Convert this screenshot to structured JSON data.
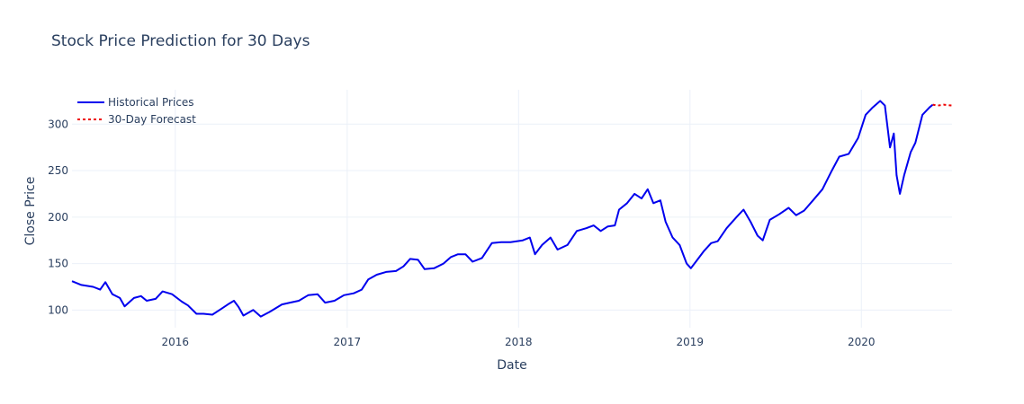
{
  "chart_data": {
    "type": "line",
    "title": "Stock Price Prediction for 30 Days",
    "xlabel": "Date",
    "ylabel": "Close Price",
    "x_range": [
      "2015-05-26",
      "2020-07-12"
    ],
    "ylim": [
      81,
      337
    ],
    "x_ticks": [
      {
        "date": "2016-01-01",
        "label": "2016"
      },
      {
        "date": "2017-01-01",
        "label": "2017"
      },
      {
        "date": "2018-01-01",
        "label": "2018"
      },
      {
        "date": "2019-01-01",
        "label": "2019"
      },
      {
        "date": "2020-01-01",
        "label": "2020"
      }
    ],
    "y_ticks": [
      100,
      150,
      200,
      250,
      300
    ],
    "grid": true,
    "legend_position": "top-left",
    "series": [
      {
        "name": "Historical Prices",
        "color": "#0000ee",
        "dash": "solid",
        "points": [
          [
            "2015-05-26",
            131
          ],
          [
            "2015-06-15",
            127
          ],
          [
            "2015-07-10",
            125
          ],
          [
            "2015-07-25",
            122
          ],
          [
            "2015-08-05",
            130
          ],
          [
            "2015-08-20",
            117
          ],
          [
            "2015-09-05",
            113
          ],
          [
            "2015-09-15",
            104
          ],
          [
            "2015-10-05",
            113
          ],
          [
            "2015-10-20",
            115
          ],
          [
            "2015-11-01",
            110
          ],
          [
            "2015-11-20",
            112
          ],
          [
            "2015-12-05",
            120
          ],
          [
            "2015-12-25",
            117
          ],
          [
            "2016-01-15",
            109
          ],
          [
            "2016-01-28",
            105
          ],
          [
            "2016-02-15",
            96
          ],
          [
            "2016-03-01",
            96
          ],
          [
            "2016-03-20",
            95
          ],
          [
            "2016-04-10",
            102
          ],
          [
            "2016-04-25",
            107
          ],
          [
            "2016-05-05",
            110
          ],
          [
            "2016-05-15",
            103
          ],
          [
            "2016-05-25",
            94
          ],
          [
            "2016-06-15",
            100
          ],
          [
            "2016-07-01",
            93
          ],
          [
            "2016-07-20",
            98
          ],
          [
            "2016-08-15",
            106
          ],
          [
            "2016-09-01",
            108
          ],
          [
            "2016-09-20",
            110
          ],
          [
            "2016-10-10",
            116
          ],
          [
            "2016-10-30",
            117
          ],
          [
            "2016-11-15",
            108
          ],
          [
            "2016-12-05",
            110
          ],
          [
            "2016-12-25",
            116
          ],
          [
            "2017-01-15",
            118
          ],
          [
            "2017-02-01",
            122
          ],
          [
            "2017-02-15",
            133
          ],
          [
            "2017-03-05",
            138
          ],
          [
            "2017-03-25",
            141
          ],
          [
            "2017-04-15",
            142
          ],
          [
            "2017-05-01",
            147
          ],
          [
            "2017-05-15",
            155
          ],
          [
            "2017-06-01",
            154
          ],
          [
            "2017-06-15",
            144
          ],
          [
            "2017-07-05",
            145
          ],
          [
            "2017-07-25",
            150
          ],
          [
            "2017-08-10",
            157
          ],
          [
            "2017-08-25",
            160
          ],
          [
            "2017-09-10",
            160
          ],
          [
            "2017-09-25",
            152
          ],
          [
            "2017-10-15",
            156
          ],
          [
            "2017-11-05",
            172
          ],
          [
            "2017-11-25",
            173
          ],
          [
            "2017-12-15",
            173
          ],
          [
            "2018-01-10",
            175
          ],
          [
            "2018-01-25",
            178
          ],
          [
            "2018-02-05",
            160
          ],
          [
            "2018-02-20",
            170
          ],
          [
            "2018-03-10",
            178
          ],
          [
            "2018-03-25",
            165
          ],
          [
            "2018-04-15",
            170
          ],
          [
            "2018-05-05",
            185
          ],
          [
            "2018-05-25",
            188
          ],
          [
            "2018-06-10",
            191
          ],
          [
            "2018-06-25",
            185
          ],
          [
            "2018-07-10",
            190
          ],
          [
            "2018-07-25",
            191
          ],
          [
            "2018-08-03",
            208
          ],
          [
            "2018-08-20",
            215
          ],
          [
            "2018-09-05",
            225
          ],
          [
            "2018-09-20",
            220
          ],
          [
            "2018-10-03",
            230
          ],
          [
            "2018-10-15",
            215
          ],
          [
            "2018-10-30",
            218
          ],
          [
            "2018-11-10",
            195
          ],
          [
            "2018-11-25",
            178
          ],
          [
            "2018-12-10",
            170
          ],
          [
            "2018-12-25",
            150
          ],
          [
            "2019-01-03",
            145
          ],
          [
            "2019-01-15",
            153
          ],
          [
            "2019-01-30",
            163
          ],
          [
            "2019-02-15",
            172
          ],
          [
            "2019-03-01",
            174
          ],
          [
            "2019-03-20",
            188
          ],
          [
            "2019-04-10",
            200
          ],
          [
            "2019-04-25",
            208
          ],
          [
            "2019-05-10",
            195
          ],
          [
            "2019-05-25",
            180
          ],
          [
            "2019-06-05",
            175
          ],
          [
            "2019-06-20",
            197
          ],
          [
            "2019-07-10",
            203
          ],
          [
            "2019-07-30",
            210
          ],
          [
            "2019-08-15",
            202
          ],
          [
            "2019-09-01",
            207
          ],
          [
            "2019-09-20",
            218
          ],
          [
            "2019-10-10",
            230
          ],
          [
            "2019-10-30",
            250
          ],
          [
            "2019-11-15",
            265
          ],
          [
            "2019-12-05",
            268
          ],
          [
            "2019-12-25",
            285
          ],
          [
            "2020-01-10",
            310
          ],
          [
            "2020-01-25",
            318
          ],
          [
            "2020-02-10",
            325
          ],
          [
            "2020-02-20",
            320
          ],
          [
            "2020-03-02",
            275
          ],
          [
            "2020-03-10",
            290
          ],
          [
            "2020-03-16",
            245
          ],
          [
            "2020-03-23",
            225
          ],
          [
            "2020-04-01",
            245
          ],
          [
            "2020-04-15",
            270
          ],
          [
            "2020-04-25",
            280
          ],
          [
            "2020-05-10",
            310
          ],
          [
            "2020-05-25",
            318
          ],
          [
            "2020-06-01",
            321
          ]
        ]
      },
      {
        "name": "30-Day Forecast",
        "color": "#ee0000",
        "dash": "dot",
        "points": [
          [
            "2020-06-01",
            321
          ],
          [
            "2020-06-12",
            320
          ],
          [
            "2020-06-24",
            321
          ],
          [
            "2020-07-12",
            320
          ]
        ]
      }
    ]
  }
}
